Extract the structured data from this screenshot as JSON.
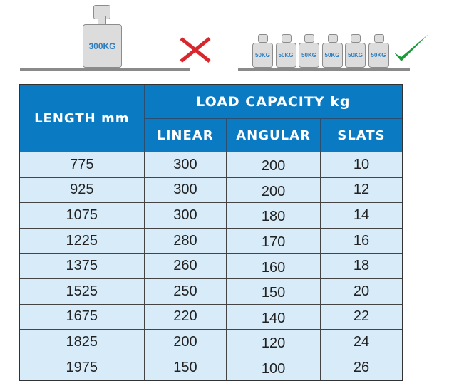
{
  "illustration": {
    "wrong": {
      "weight_label": "300KG",
      "icon": "cross-icon",
      "color": "#d9272e"
    },
    "right": {
      "weight_labels": [
        "50KG",
        "50KG",
        "50KG",
        "50KG",
        "50KG",
        "50KG"
      ],
      "icon": "checkmark-icon",
      "color": "#1a9a3a"
    }
  },
  "table": {
    "header": {
      "length": "LENGTH mm",
      "load_capacity": "LOAD CAPACITY kg",
      "linear": "LINEAR",
      "angular": "ANGULAR",
      "slats": "SLATS"
    },
    "rows": [
      [
        "775",
        "300",
        "200",
        "10"
      ],
      [
        "925",
        "300",
        "200",
        "12"
      ],
      [
        "1075",
        "300",
        "180",
        "14"
      ],
      [
        "1225",
        "280",
        "170",
        "16"
      ],
      [
        "1375",
        "260",
        "160",
        "18"
      ],
      [
        "1525",
        "250",
        "150",
        "20"
      ],
      [
        "1675",
        "220",
        "140",
        "22"
      ],
      [
        "1825",
        "200",
        "120",
        "24"
      ],
      [
        "1975",
        "150",
        "100",
        "26"
      ]
    ],
    "header_color": "#0a7ac2",
    "row_color": "#d7ebf9"
  }
}
